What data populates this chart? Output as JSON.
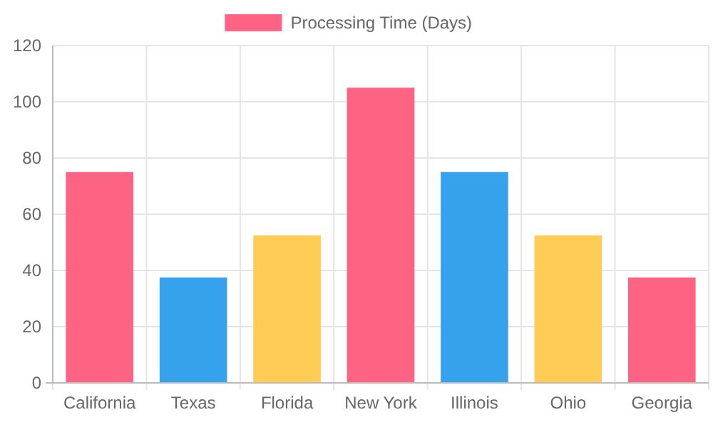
{
  "chart_data": {
    "type": "bar",
    "categories": [
      "California",
      "Texas",
      "Florida",
      "New York",
      "Illinois",
      "Ohio",
      "Georgia"
    ],
    "series": [
      {
        "name": "Processing Time (Days)",
        "color": "#ff6384",
        "colors": [
          "#ff6384",
          "#36a2eb",
          "#ffcd56",
          "#ff6384",
          "#36a2eb",
          "#ffcd56",
          "#ff6384"
        ],
        "values": [
          75,
          37.5,
          52.5,
          105,
          75,
          52.5,
          37.5
        ]
      }
    ],
    "ylim": [
      0,
      120
    ],
    "yticks": [
      0,
      20,
      40,
      60,
      80,
      100,
      120
    ],
    "grid": true,
    "legend": "top"
  }
}
